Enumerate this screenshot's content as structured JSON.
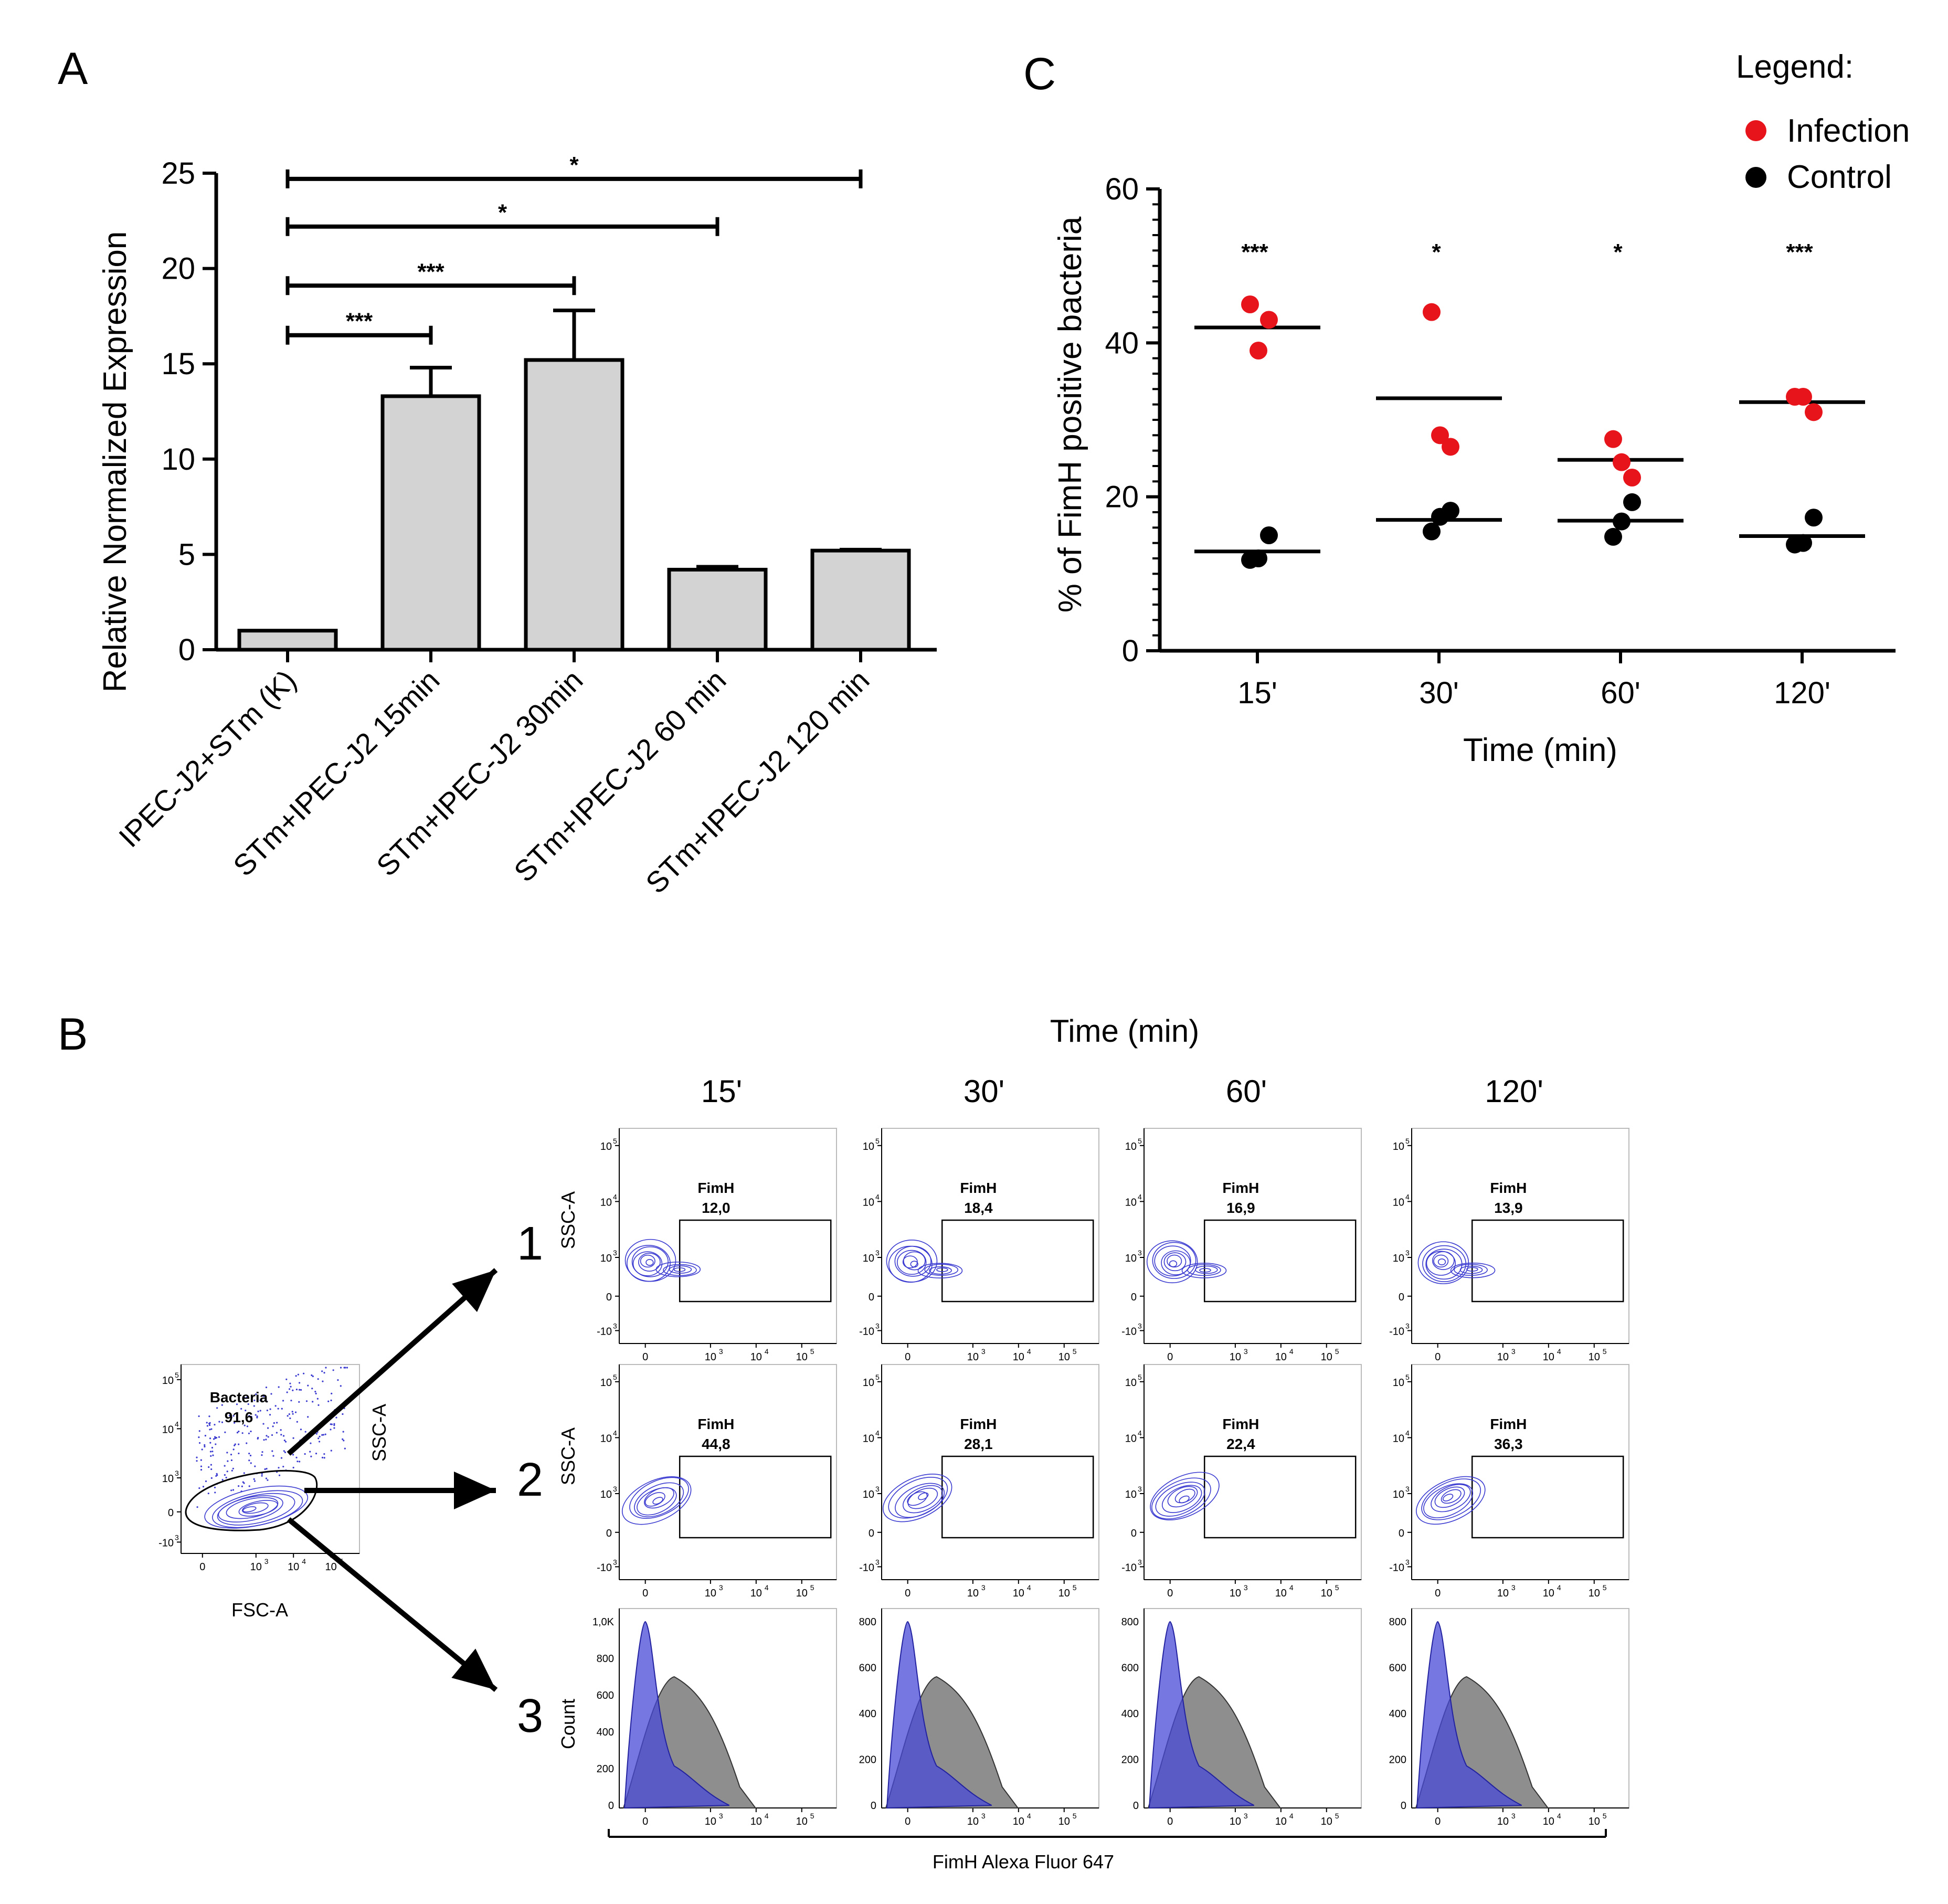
{
  "panels": {
    "a": "A",
    "b": "B",
    "c": "C"
  },
  "chart_data": [
    {
      "id": "A",
      "type": "bar",
      "ylabel": "Relative Normalized Expression",
      "ylim": [
        0,
        25
      ],
      "yticks": [
        0,
        5,
        10,
        15,
        20,
        25
      ],
      "categories": [
        "IPEC-J2+STm (K)",
        "STm+IPEC-J2 15min",
        "STm+IPEC-J2 30min",
        "STm+IPEC-J2 60 min",
        "STm+IPEC-J2 120 min"
      ],
      "values": [
        1.0,
        13.3,
        15.2,
        4.2,
        5.2
      ],
      "errors": [
        0,
        1.5,
        2.6,
        0.15,
        0.05
      ],
      "bar_color": "#d3d3d3",
      "significance": [
        {
          "from": 0,
          "to": 1,
          "level": 16.5,
          "label": "***"
        },
        {
          "from": 0,
          "to": 2,
          "level": 19.1,
          "label": "***"
        },
        {
          "from": 0,
          "to": 3,
          "level": 22.2,
          "label": "*"
        },
        {
          "from": 0,
          "to": 4,
          "level": 24.7,
          "label": "*"
        }
      ]
    },
    {
      "id": "C",
      "type": "scatter",
      "xlabel": "Time (min)",
      "ylabel": "% of FimH positive bacteria",
      "ylim": [
        0,
        60
      ],
      "yticks": [
        0,
        20,
        40,
        60
      ],
      "categories": [
        "15'",
        "30'",
        "60'",
        "120'"
      ],
      "series": [
        {
          "name": "Infection",
          "color": "#e8141c",
          "points": [
            [
              45,
              43,
              39
            ],
            [
              44,
              26.5,
              28
            ],
            [
              27.5,
              22.5,
              24.5
            ],
            [
              33,
              31,
              33
            ]
          ],
          "means": [
            42,
            32.8,
            24.8,
            32.3
          ]
        },
        {
          "name": "Control",
          "color": "#000000",
          "points": [
            [
              11.8,
              15,
              12
            ],
            [
              15.5,
              18.2,
              17.4
            ],
            [
              14.8,
              19.3,
              16.8
            ],
            [
              13.8,
              17.3,
              14
            ]
          ],
          "means": [
            12.9,
            17,
            16.9,
            14.9
          ]
        }
      ],
      "significance": [
        "***",
        "*",
        "*",
        "***"
      ],
      "legend_title": "Legend:",
      "legend_position": "top-right"
    }
  ],
  "flow": {
    "title": "Time (min)",
    "columns": [
      "15'",
      "30'",
      "60'",
      "120'"
    ],
    "rows": [
      "1",
      "2",
      "3"
    ],
    "ssc_label": "SSC-A",
    "count_label": "Count",
    "fsc_label": "FSC-A",
    "x_axis_label": "FimH Alexa Fluor 647",
    "gate_name": "FimH",
    "row1_values": [
      "12,0",
      "18,4",
      "16,9",
      "13,9"
    ],
    "row2_values": [
      "44,8",
      "28,1",
      "22,4",
      "36,3"
    ],
    "bacteria_gate": {
      "name": "Bacteria",
      "value": "91,6"
    },
    "count_max_labels": [
      [
        "1,0K",
        "800",
        "600",
        "400",
        "200",
        "0"
      ],
      [
        "800",
        "600",
        "400",
        "200",
        "0"
      ],
      [
        "800",
        "600",
        "400",
        "200",
        "0"
      ],
      [
        "800",
        "600",
        "400",
        "200",
        "0"
      ]
    ],
    "log_x_ticks": [
      "0",
      "10",
      "10",
      "10"
    ],
    "log_x_exp": [
      "",
      "3",
      "4",
      "5"
    ],
    "log_y_ticks": [
      "10",
      "10",
      "10",
      "0",
      "-10"
    ],
    "log_y_exp": [
      "5",
      "4",
      "3",
      "",
      "3"
    ],
    "contour_color": "#3b3bd1",
    "histogram_gray": "#7a7a7a",
    "histogram_blue": "#4a4ad8"
  }
}
